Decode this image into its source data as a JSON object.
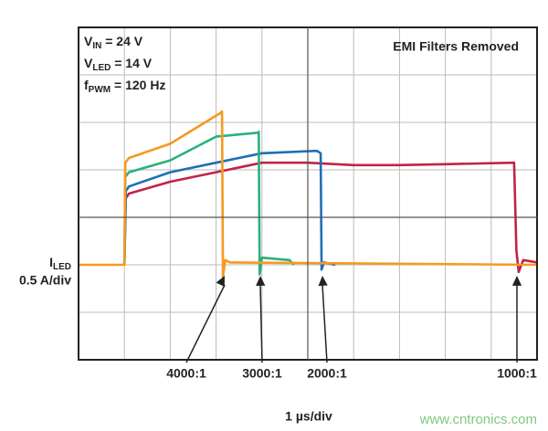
{
  "chart_data": {
    "type": "line",
    "notes": [
      {
        "symbol": "V",
        "sub": "IN",
        "rest": " = 24 V"
      },
      {
        "symbol": "V",
        "sub": "LED",
        "rest": " = 14 V"
      },
      {
        "symbol": "f",
        "sub": "PWM",
        "rest": " = 120 Hz"
      }
    ],
    "title": "EMI Filters Removed",
    "ylabel": {
      "symbol": "I",
      "sub": "LED",
      "scale": "0.5 A/div"
    },
    "xlabel": "1 µs/div",
    "watermark": "www.cntronics.com",
    "xlim": [
      0,
      10
    ],
    "xticks": [
      0,
      1,
      2,
      3,
      4,
      5,
      6,
      7,
      8,
      9,
      10
    ],
    "ylim": [
      -2,
      5
    ],
    "yticks": [
      -2,
      -1,
      0,
      1,
      2,
      3,
      4,
      5
    ],
    "grid": true,
    "series": [
      {
        "name": "1000:1",
        "color": "#c0234a",
        "x": [
          1.0,
          1.03,
          1.1,
          2,
          3,
          4,
          5,
          6,
          7,
          8,
          9.5,
          9.55,
          9.6,
          9.7,
          10
        ],
        "values": [
          0,
          1.4,
          1.5,
          1.75,
          1.95,
          2.15,
          2.15,
          2.1,
          2.1,
          2.12,
          2.15,
          0.3,
          -0.15,
          0.1,
          0.05
        ]
      },
      {
        "name": "2000:1",
        "color": "#1f6fb5",
        "x": [
          1.0,
          1.03,
          1.1,
          2,
          3,
          4,
          5.2,
          5.28,
          5.3,
          5.35,
          5.6
        ],
        "values": [
          0,
          1.55,
          1.65,
          1.95,
          2.15,
          2.35,
          2.4,
          2.35,
          -0.1,
          0.05,
          0
        ]
      },
      {
        "name": "3000:1",
        "color": "#2ab07f",
        "x": [
          1.0,
          1.02,
          1.1,
          2,
          3,
          3.9,
          3.93,
          3.95,
          4.0,
          4.6,
          4.7
        ],
        "values": [
          0,
          1.85,
          1.95,
          2.2,
          2.7,
          2.78,
          2.8,
          -0.2,
          0.15,
          0.1,
          0
        ]
      },
      {
        "name": "4000:1",
        "color": "#f59a1f",
        "x": [
          0,
          1.0,
          1.02,
          1.1,
          2,
          3.1,
          3.13,
          3.15,
          3.2,
          3.3,
          10
        ],
        "values": [
          0,
          0,
          2.15,
          2.25,
          2.55,
          3.2,
          3.23,
          -0.25,
          0.1,
          0.05,
          0
        ]
      }
    ]
  }
}
